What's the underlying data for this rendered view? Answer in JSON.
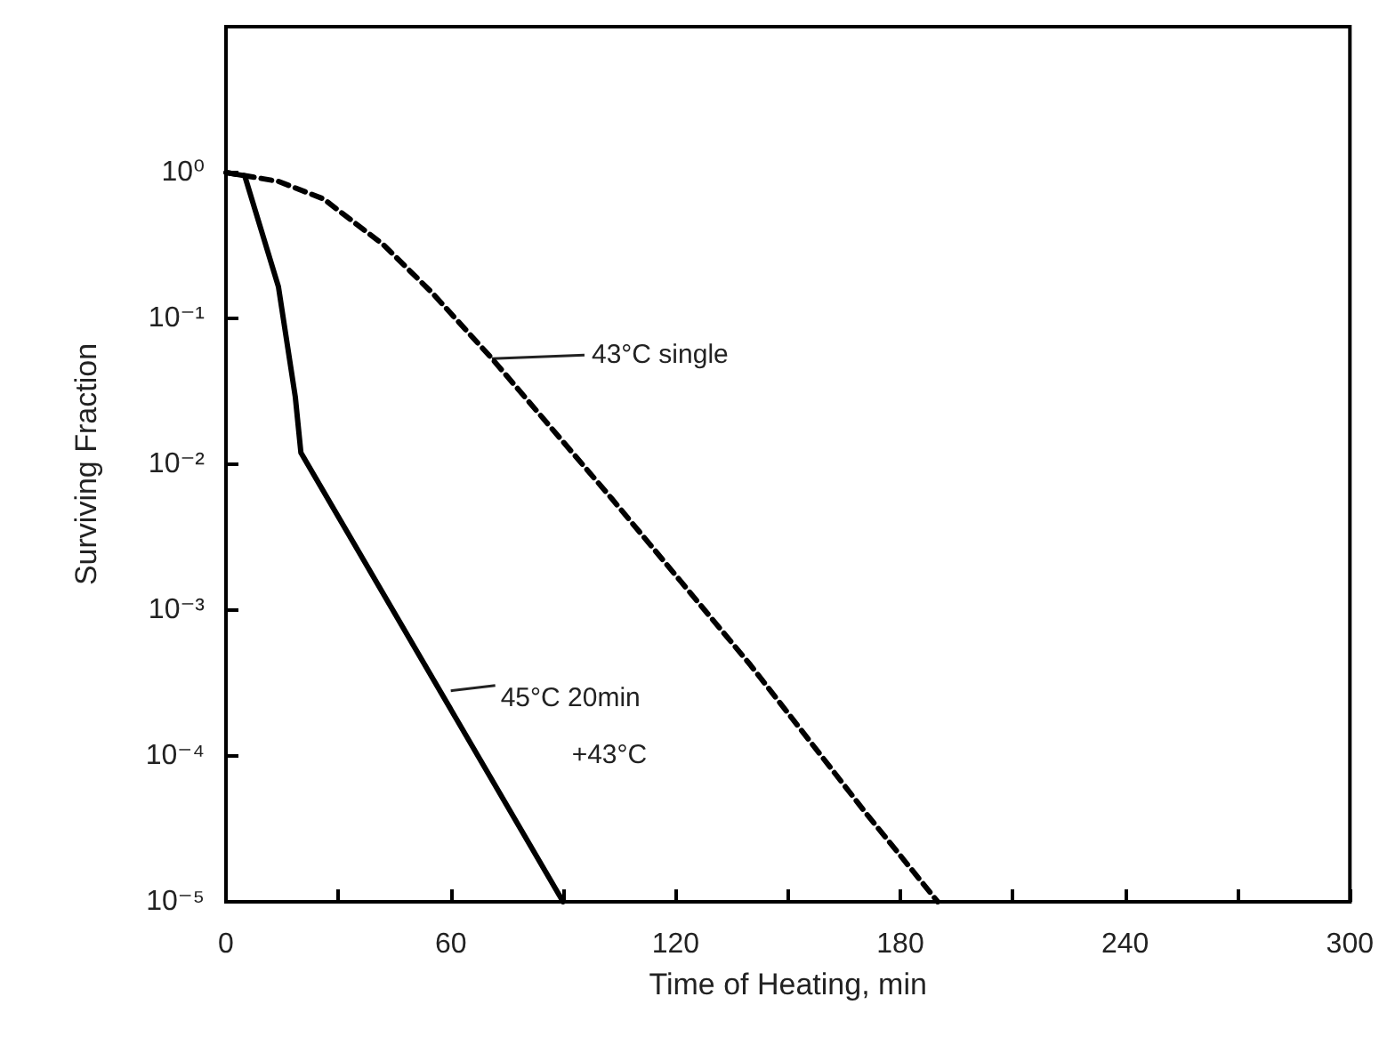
{
  "chart_data": {
    "type": "line",
    "xlabel": "Time of Heating, min",
    "ylabel": "Surviving Fraction",
    "log": "y",
    "xlim": [
      0,
      300
    ],
    "xticks": [
      0,
      {
        "value": 30,
        "label": null
      },
      60,
      {
        "value": 90,
        "label": null
      },
      120,
      {
        "value": 150,
        "label": null
      },
      180,
      {
        "value": 210,
        "label": null
      },
      240,
      {
        "value": 270,
        "label": null
      },
      300
    ],
    "ylim": [
      1e-05,
      10
    ],
    "yticks": [
      {
        "value": 1e-05,
        "label": "10⁻⁵"
      },
      {
        "value": 0.0001,
        "label": "10⁻⁴"
      },
      {
        "value": 0.001,
        "label": "10⁻³"
      },
      {
        "value": 0.01,
        "label": "10⁻²"
      },
      {
        "value": 0.1,
        "label": "10⁻¹"
      },
      {
        "value": 1,
        "label": "10⁰"
      }
    ],
    "grid": false,
    "marker": "none",
    "series": [
      {
        "color": "#000000",
        "line_style": "dashed",
        "x": [
          0,
          14,
          26,
          42,
          55,
          71,
          103,
          140,
          171,
          190
        ],
        "values": [
          1,
          0.87,
          0.66,
          0.32,
          0.15,
          0.053,
          0.0058,
          0.00042,
          4e-05,
          1e-05
        ]
      },
      {
        "color": "#000000",
        "line_style": "solid",
        "x": [
          0,
          5,
          14,
          18.5,
          20,
          90
        ],
        "values": [
          1,
          0.95,
          0.165,
          0.029,
          0.012,
          1e-05
        ]
      }
    ],
    "annotations": [
      {
        "text": "43°C single",
        "x": 71,
        "y": 0.053
      },
      {
        "text": "45°C 20min\n+43°C",
        "x": 60,
        "y": 0.00028
      }
    ]
  }
}
